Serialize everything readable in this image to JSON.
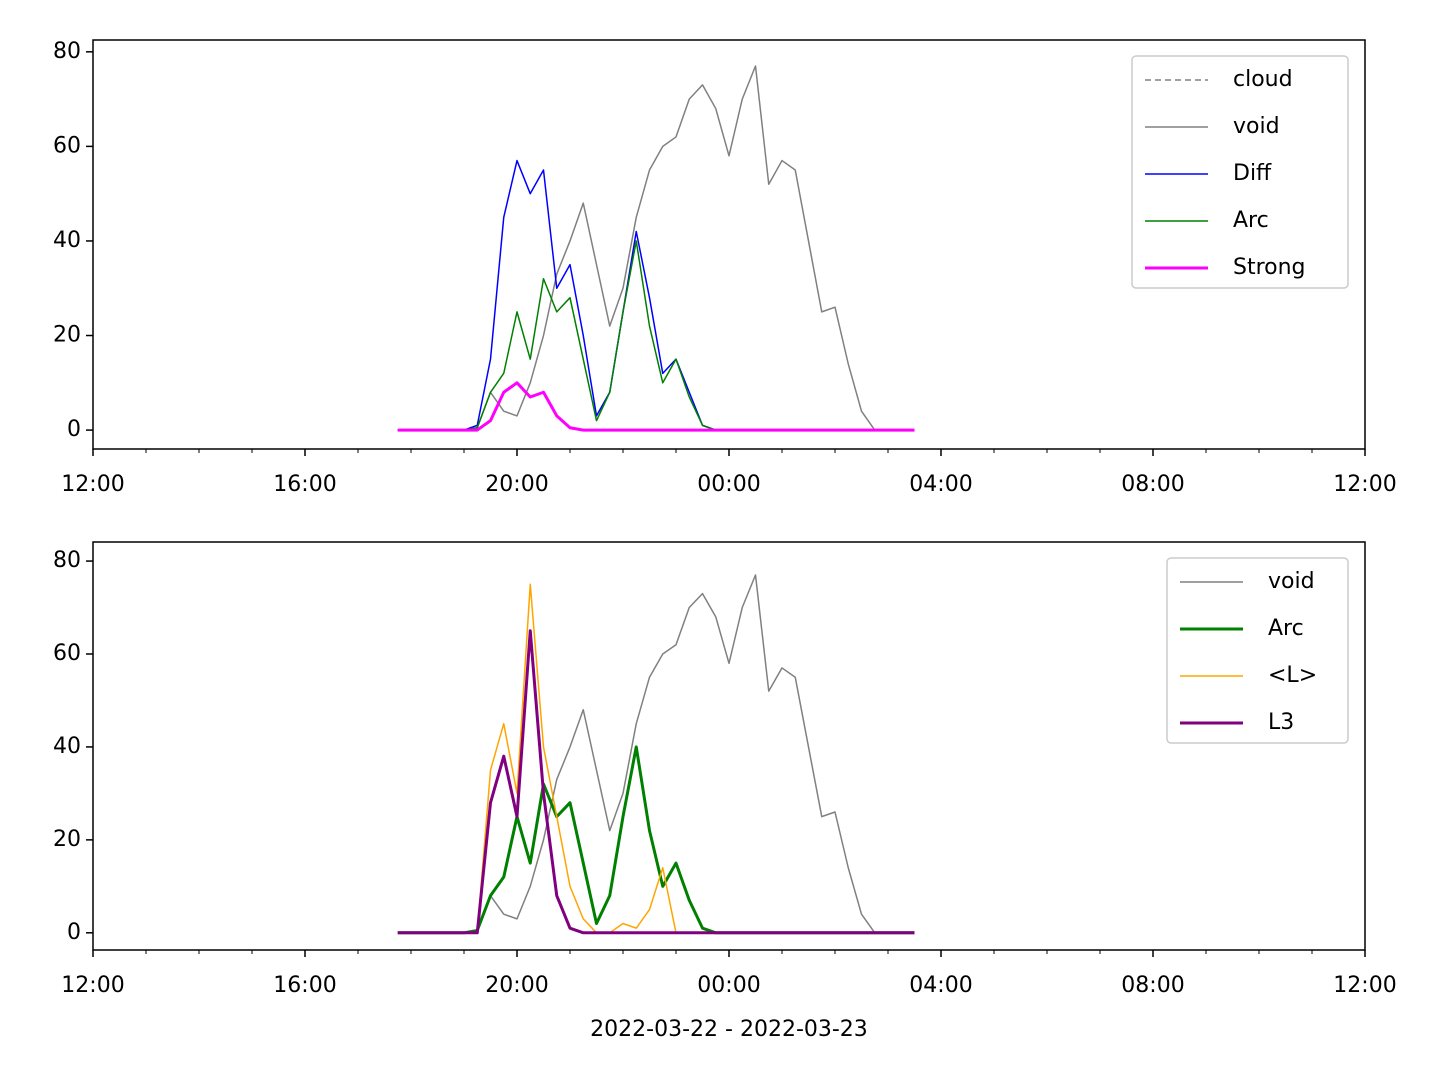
{
  "chart_data": [
    {
      "type": "line",
      "x": [
        5.75,
        6,
        6.25,
        6.5,
        6.75,
        7,
        7.25,
        7.5,
        7.75,
        8,
        8.25,
        8.5,
        8.75,
        9,
        9.25,
        9.5,
        9.75,
        10,
        10.25,
        10.5,
        10.75,
        11,
        11.25,
        11.5,
        11.75,
        12,
        12.25,
        12.5,
        12.75,
        13,
        13.25,
        13.5,
        13.75,
        14,
        14.25,
        14.5,
        14.75,
        15,
        15.25,
        15.5
      ],
      "xlim": [
        0,
        24
      ],
      "xticks": [
        {
          "value": 0,
          "label": "12:00"
        },
        {
          "value": 4,
          "label": "16:00"
        },
        {
          "value": 8,
          "label": "20:00"
        },
        {
          "value": 12,
          "label": "00:00"
        },
        {
          "value": 16,
          "label": "04:00"
        },
        {
          "value": 20,
          "label": "08:00"
        },
        {
          "value": 24,
          "label": "12:00"
        }
      ],
      "ylim": [
        -4,
        82.5
      ],
      "yticks": [
        0,
        20,
        40,
        60,
        80
      ],
      "legend": "upper right",
      "series": [
        {
          "name": "cloud",
          "color": "#808080",
          "linestyle": "dashed",
          "linewidth": 1.5,
          "values": [
            null,
            null,
            null,
            null,
            null,
            null,
            null,
            null,
            null,
            null,
            null,
            null,
            null,
            null,
            null,
            null,
            null,
            null,
            null,
            null,
            null,
            null,
            null,
            null,
            null,
            null,
            null,
            null,
            null,
            null,
            null,
            null,
            null,
            null,
            null,
            null,
            null,
            null,
            null,
            null
          ]
        },
        {
          "name": "void",
          "color": "#808080",
          "linestyle": "solid",
          "linewidth": 1.5,
          "values": [
            0,
            0,
            0,
            0,
            0,
            0,
            0.5,
            8,
            4,
            3,
            10,
            20,
            33,
            40,
            48,
            35,
            22,
            30,
            45,
            55,
            60,
            62,
            70,
            73,
            68,
            58,
            70,
            77,
            52,
            57,
            55,
            40,
            25,
            26,
            14,
            4,
            0,
            0,
            0,
            0
          ]
        },
        {
          "name": "Diff",
          "color": "#0000ff",
          "linestyle": "solid",
          "linewidth": 1.5,
          "values": [
            0,
            0,
            0,
            0,
            0,
            0,
            1,
            15,
            45,
            57,
            50,
            55,
            30,
            35,
            20,
            3,
            8,
            25,
            42,
            28,
            12,
            15,
            8,
            1,
            0,
            0,
            0,
            0,
            0,
            0,
            0,
            0,
            0,
            0,
            0,
            0,
            0,
            0,
            0,
            0
          ]
        },
        {
          "name": "Arc",
          "color": "#008000",
          "linestyle": "solid",
          "linewidth": 1.5,
          "values": [
            0,
            0,
            0,
            0,
            0,
            0,
            0.5,
            8,
            12,
            25,
            15,
            32,
            25,
            28,
            15,
            2,
            8,
            25,
            40,
            22,
            10,
            15,
            7,
            1,
            0,
            0,
            0,
            0,
            0,
            0,
            0,
            0,
            0,
            0,
            0,
            0,
            0,
            0,
            0,
            0
          ]
        },
        {
          "name": "Strong",
          "color": "#ff00ff",
          "linestyle": "solid",
          "linewidth": 3,
          "values": [
            0,
            0,
            0,
            0,
            0,
            0,
            0,
            2,
            8,
            10,
            7,
            8,
            3,
            0.5,
            0,
            0,
            0,
            0,
            0,
            0,
            0,
            0,
            0,
            0,
            0,
            0,
            0,
            0,
            0,
            0,
            0,
            0,
            0,
            0,
            0,
            0,
            0,
            0,
            0,
            0
          ]
        }
      ]
    },
    {
      "type": "line",
      "x": [
        5.75,
        6,
        6.25,
        6.5,
        6.75,
        7,
        7.25,
        7.5,
        7.75,
        8,
        8.25,
        8.5,
        8.75,
        9,
        9.25,
        9.5,
        9.75,
        10,
        10.25,
        10.5,
        10.75,
        11,
        11.25,
        11.5,
        11.75,
        12,
        12.25,
        12.5,
        12.75,
        13,
        13.25,
        13.5,
        13.75,
        14,
        14.25,
        14.5,
        14.75,
        15,
        15.25,
        15.5
      ],
      "xlim": [
        0,
        24
      ],
      "xticks": [
        {
          "value": 0,
          "label": "12:00"
        },
        {
          "value": 4,
          "label": "16:00"
        },
        {
          "value": 8,
          "label": "20:00"
        },
        {
          "value": 12,
          "label": "00:00"
        },
        {
          "value": 16,
          "label": "04:00"
        },
        {
          "value": 20,
          "label": "08:00"
        },
        {
          "value": 24,
          "label": "12:00"
        }
      ],
      "xlabel": "2022-03-22 - 2022-03-23",
      "ylim": [
        -3.7,
        84.1
      ],
      "yticks": [
        0,
        20,
        40,
        60,
        80
      ],
      "legend": "upper right",
      "series": [
        {
          "name": "void",
          "color": "#808080",
          "linestyle": "solid",
          "linewidth": 1.5,
          "values": [
            0,
            0,
            0,
            0,
            0,
            0,
            0.5,
            8,
            4,
            3,
            10,
            20,
            33,
            40,
            48,
            35,
            22,
            30,
            45,
            55,
            60,
            62,
            70,
            73,
            68,
            58,
            70,
            77,
            52,
            57,
            55,
            40,
            25,
            26,
            14,
            4,
            0,
            0,
            0,
            0
          ]
        },
        {
          "name": "Arc",
          "color": "#008000",
          "linestyle": "solid",
          "linewidth": 3,
          "values": [
            0,
            0,
            0,
            0,
            0,
            0,
            0.5,
            8,
            12,
            25,
            15,
            32,
            25,
            28,
            15,
            2,
            8,
            25,
            40,
            22,
            10,
            15,
            7,
            1,
            0,
            0,
            0,
            0,
            0,
            0,
            0,
            0,
            0,
            0,
            0,
            0,
            0,
            0,
            0,
            0
          ]
        },
        {
          "name": "<L>",
          "color": "#ffa500",
          "linestyle": "solid",
          "linewidth": 1.5,
          "values": [
            0,
            0,
            0,
            0,
            0,
            0,
            0,
            35,
            45,
            30,
            75,
            40,
            25,
            10,
            3,
            0,
            0,
            2,
            1,
            5,
            14,
            0,
            0,
            0,
            0,
            0,
            0,
            0,
            0,
            0,
            0,
            0,
            0,
            0,
            0,
            0,
            0,
            0,
            0,
            0
          ]
        },
        {
          "name": "L3",
          "color": "#800080",
          "linestyle": "solid",
          "linewidth": 3,
          "values": [
            0,
            0,
            0,
            0,
            0,
            0,
            0,
            28,
            38,
            25,
            65,
            30,
            8,
            1,
            0,
            0,
            0,
            0,
            0,
            0,
            0,
            0,
            0,
            0,
            0,
            0,
            0,
            0,
            0,
            0,
            0,
            0,
            0,
            0,
            0,
            0,
            0,
            0,
            0,
            0
          ]
        }
      ]
    }
  ]
}
